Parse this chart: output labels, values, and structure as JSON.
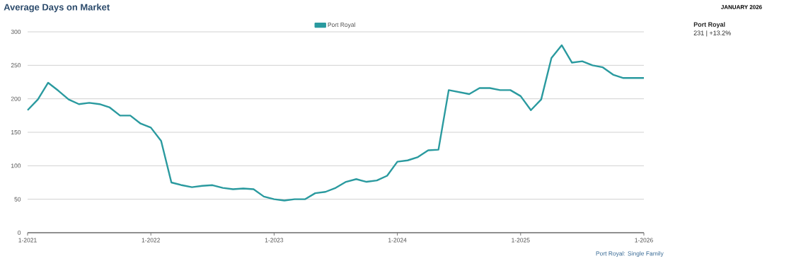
{
  "chart_data": {
    "type": "line",
    "title": "Average Days on Market",
    "x": [
      "2021-01",
      "2021-02",
      "2021-03",
      "2021-04",
      "2021-05",
      "2021-06",
      "2021-07",
      "2021-08",
      "2021-09",
      "2021-10",
      "2021-11",
      "2021-12",
      "2022-01",
      "2022-02",
      "2022-03",
      "2022-04",
      "2022-05",
      "2022-06",
      "2022-07",
      "2022-08",
      "2022-09",
      "2022-10",
      "2022-11",
      "2022-12",
      "2023-01",
      "2023-02",
      "2023-03",
      "2023-04",
      "2023-05",
      "2023-06",
      "2023-07",
      "2023-08",
      "2023-09",
      "2023-10",
      "2023-11",
      "2023-12",
      "2024-01",
      "2024-02",
      "2024-03",
      "2024-04",
      "2024-05",
      "2024-06",
      "2024-07",
      "2024-08",
      "2024-09",
      "2024-10",
      "2024-11",
      "2024-12",
      "2025-01",
      "2025-02",
      "2025-03",
      "2025-04",
      "2025-05",
      "2025-06",
      "2025-07",
      "2025-08",
      "2025-09",
      "2025-10",
      "2025-11",
      "2025-12",
      "2026-01"
    ],
    "series": [
      {
        "name": "Port Royal",
        "color": "#2a9a9f",
        "values": [
          183,
          199,
          224,
          212,
          199,
          192,
          194,
          192,
          187,
          175,
          175,
          163,
          157,
          137,
          75,
          71,
          68,
          70,
          71,
          67,
          65,
          66,
          65,
          54,
          50,
          48,
          50,
          50,
          59,
          61,
          67,
          76,
          80,
          76,
          78,
          85,
          106,
          108,
          113,
          123,
          124,
          213,
          210,
          207,
          216,
          216,
          213,
          213,
          204,
          183,
          199,
          261,
          280,
          254,
          256,
          250,
          247,
          236,
          231,
          231,
          231
        ]
      }
    ],
    "xlim": [
      "2021-01",
      "2026-01"
    ],
    "xticks": [
      {
        "value": "2021-01",
        "label": "1-2021"
      },
      {
        "value": "2022-01",
        "label": "1-2022"
      },
      {
        "value": "2023-01",
        "label": "1-2023"
      },
      {
        "value": "2024-01",
        "label": "1-2024"
      },
      {
        "value": "2025-01",
        "label": "1-2025"
      },
      {
        "value": "2026-01",
        "label": "1-2026"
      }
    ],
    "ylim": [
      0,
      300
    ],
    "yticks": [
      0,
      50,
      100,
      150,
      200,
      250,
      300
    ],
    "grid": "y",
    "legend": "top",
    "marker": "none",
    "line_style": "solid",
    "annotations": [
      "JANUARY 2026",
      "Port Royal",
      "231 | +13.2%",
      "Port Royal: Single Family"
    ]
  }
}
